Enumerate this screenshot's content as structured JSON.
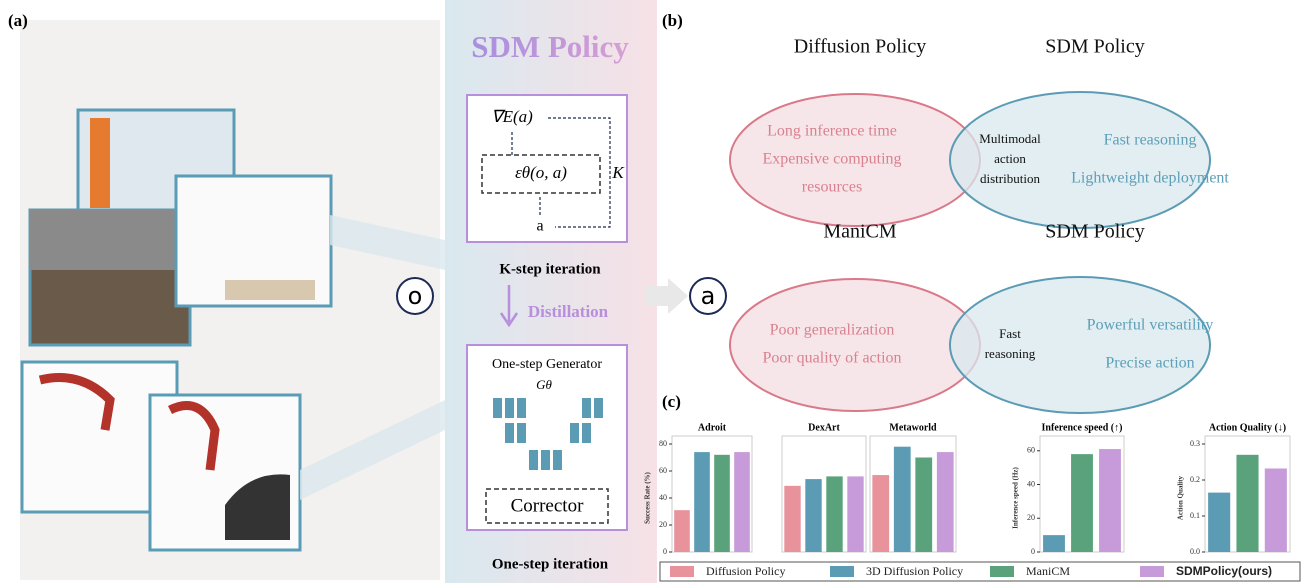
{
  "panel_a": {
    "label": "(a)",
    "title": "SDM Policy",
    "observation": "o",
    "action": "a",
    "energy_gradient": "∇E(a)",
    "denoiser": "εθ(o, a)",
    "steps": "K",
    "input": "a",
    "k_step_caption": "K-step iteration",
    "distillation": "Distillation",
    "generator": "One-step Generator",
    "generator_symbol": "Gθ",
    "corrector": "Corrector",
    "one_step_caption": "One-step iteration"
  },
  "panel_b": {
    "label": "(b)",
    "diagrams": [
      {
        "left_title": "Diffusion Policy",
        "right_title": "SDM Policy",
        "left_items": [
          "Long inference time",
          "Expensive computing",
          "resources"
        ],
        "overlap": [
          "Multimodal",
          "action",
          "distribution"
        ],
        "right_items": [
          "Fast reasoning",
          "Lightweight deployment"
        ]
      },
      {
        "left_title": "ManiCM",
        "right_title": "SDM Policy",
        "left_items": [
          "Poor generalization",
          "Poor quality of action"
        ],
        "overlap": [
          "Fast",
          "reasoning"
        ],
        "right_items": [
          "Powerful versatility",
          "Precise action"
        ]
      }
    ]
  },
  "panel_c": {
    "label": "(c)",
    "legend": [
      {
        "name": "Diffusion Policy",
        "color": "#e8939c"
      },
      {
        "name": "3D Diffusion Policy",
        "color": "#5b9bb4"
      },
      {
        "name": "ManiCM",
        "color": "#5aa27b"
      },
      {
        "name": "SDMPolicy(ours)",
        "color": "#c79bd9"
      }
    ]
  },
  "chart_data": [
    {
      "type": "bar",
      "title": "Adroit",
      "y_label": "Success Rate (%)",
      "values": [
        31,
        74,
        72,
        74
      ],
      "ylim": [
        0,
        80
      ],
      "yticks": [
        0,
        20,
        40,
        60,
        80
      ]
    },
    {
      "type": "bar",
      "title": "DexArt",
      "values": [
        49,
        54,
        56,
        56
      ],
      "ylim": [
        0,
        80
      ]
    },
    {
      "type": "bar",
      "title": "Metaworld",
      "values": [
        57,
        78,
        70,
        74
      ],
      "ylim": [
        0,
        80
      ]
    },
    {
      "type": "bar",
      "title": "Inference speed (↑)",
      "y_label": "Inference speed (Hz)",
      "values": [
        null,
        10,
        58,
        61
      ],
      "ylim": [
        0,
        64
      ],
      "yticks": [
        0,
        20,
        40,
        60
      ]
    },
    {
      "type": "bar",
      "title": "Action Quality (↓)",
      "y_label": "Action Quality",
      "values": [
        null,
        0.165,
        0.27,
        0.232
      ],
      "ylim": [
        0,
        0.3
      ],
      "yticks": [
        {
          "value": 0,
          "label": "0.0"
        },
        0.1,
        0.2,
        0.3
      ]
    }
  ]
}
